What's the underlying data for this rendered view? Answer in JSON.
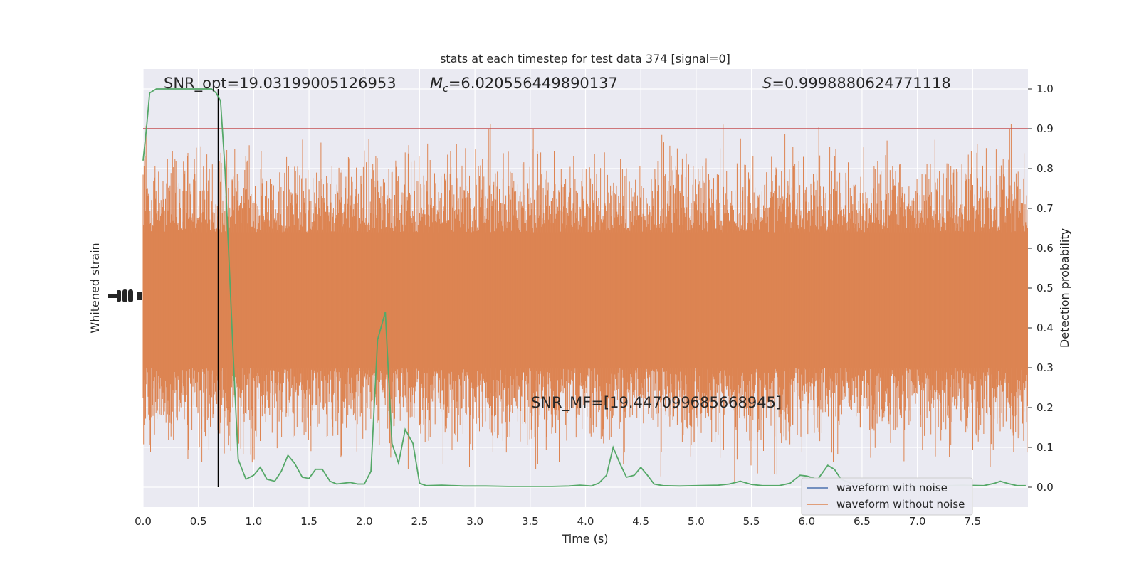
{
  "chart_data": {
    "type": "line",
    "title": "stats at each timestep for test data 374 [signal=0]",
    "xlabel": "Time (s)",
    "ylabel_left": "Whitened strain",
    "ylabel_right": "Detection probability",
    "xlim": [
      0,
      8
    ],
    "ylim_right": [
      -0.05,
      1.05
    ],
    "x_ticks": [
      "0.0",
      "0.5",
      "1.0",
      "1.5",
      "2.0",
      "2.5",
      "3.0",
      "3.5",
      "4.0",
      "4.5",
      "5.0",
      "5.5",
      "6.0",
      "6.5",
      "7.0",
      "7.5"
    ],
    "y_ticks_right": [
      "0.0",
      "0.1",
      "0.2",
      "0.3",
      "0.4",
      "0.5",
      "0.6",
      "0.7",
      "0.8",
      "0.9",
      "1.0"
    ],
    "grid": true,
    "annotations": {
      "snr_opt": "SNR_opt=19.03199005126953",
      "mc_symbol": "M",
      "mc_sub": "c",
      "mc_value": "=6.020556449890137",
      "s_symbol": "S",
      "s_value": "=0.9998880624771118",
      "snr_mf": "SNR_MF=[19.447099685668945]"
    },
    "threshold": {
      "y": 0.9,
      "color": "#c44e52"
    },
    "marker_line_x": 0.68,
    "legend": {
      "position": "lower-right",
      "entries": [
        {
          "label": "waveform with noise",
          "color": "#4c72b0"
        },
        {
          "label": "waveform without noise",
          "color": "#dd8452"
        }
      ]
    },
    "noise_band": {
      "color": "#dd8452",
      "center": 0.47,
      "core_half_width": 0.17
    },
    "detection_probability": {
      "color": "#55a868",
      "points": [
        [
          0.0,
          0.82
        ],
        [
          0.03,
          0.9
        ],
        [
          0.06,
          0.99
        ],
        [
          0.12,
          1.0
        ],
        [
          0.3,
          1.0
        ],
        [
          0.5,
          1.0
        ],
        [
          0.62,
          1.0
        ],
        [
          0.66,
          0.99
        ],
        [
          0.7,
          0.97
        ],
        [
          0.74,
          0.8
        ],
        [
          0.78,
          0.55
        ],
        [
          0.82,
          0.3
        ],
        [
          0.86,
          0.07
        ],
        [
          0.93,
          0.02
        ],
        [
          1.0,
          0.03
        ],
        [
          1.06,
          0.05
        ],
        [
          1.12,
          0.02
        ],
        [
          1.19,
          0.015
        ],
        [
          1.25,
          0.04
        ],
        [
          1.31,
          0.08
        ],
        [
          1.37,
          0.06
        ],
        [
          1.44,
          0.025
        ],
        [
          1.5,
          0.022
        ],
        [
          1.56,
          0.045
        ],
        [
          1.62,
          0.045
        ],
        [
          1.69,
          0.015
        ],
        [
          1.75,
          0.008
        ],
        [
          1.81,
          0.01
        ],
        [
          1.87,
          0.012
        ],
        [
          1.94,
          0.008
        ],
        [
          2.0,
          0.008
        ],
        [
          2.06,
          0.04
        ],
        [
          2.12,
          0.37
        ],
        [
          2.19,
          0.44
        ],
        [
          2.25,
          0.11
        ],
        [
          2.31,
          0.06
        ],
        [
          2.37,
          0.145
        ],
        [
          2.44,
          0.11
        ],
        [
          2.5,
          0.01
        ],
        [
          2.56,
          0.004
        ],
        [
          2.7,
          0.005
        ],
        [
          2.9,
          0.003
        ],
        [
          3.1,
          0.003
        ],
        [
          3.3,
          0.002
        ],
        [
          3.5,
          0.002
        ],
        [
          3.7,
          0.002
        ],
        [
          3.85,
          0.003
        ],
        [
          3.95,
          0.005
        ],
        [
          4.05,
          0.003
        ],
        [
          4.12,
          0.01
        ],
        [
          4.19,
          0.03
        ],
        [
          4.25,
          0.1
        ],
        [
          4.31,
          0.06
        ],
        [
          4.37,
          0.025
        ],
        [
          4.44,
          0.03
        ],
        [
          4.5,
          0.05
        ],
        [
          4.56,
          0.03
        ],
        [
          4.62,
          0.008
        ],
        [
          4.7,
          0.004
        ],
        [
          4.85,
          0.003
        ],
        [
          5.0,
          0.004
        ],
        [
          5.2,
          0.005
        ],
        [
          5.3,
          0.008
        ],
        [
          5.4,
          0.015
        ],
        [
          5.5,
          0.007
        ],
        [
          5.6,
          0.004
        ],
        [
          5.75,
          0.004
        ],
        [
          5.85,
          0.01
        ],
        [
          5.94,
          0.03
        ],
        [
          6.0,
          0.028
        ],
        [
          6.1,
          0.02
        ],
        [
          6.19,
          0.055
        ],
        [
          6.25,
          0.045
        ],
        [
          6.31,
          0.02
        ],
        [
          6.4,
          0.01
        ],
        [
          6.6,
          0.005
        ],
        [
          6.8,
          0.004
        ],
        [
          7.0,
          0.003
        ],
        [
          7.2,
          0.003
        ],
        [
          7.4,
          0.005
        ],
        [
          7.6,
          0.004
        ],
        [
          7.7,
          0.01
        ],
        [
          7.75,
          0.015
        ],
        [
          7.81,
          0.01
        ],
        [
          7.9,
          0.004
        ],
        [
          7.98,
          0.004
        ]
      ]
    }
  }
}
